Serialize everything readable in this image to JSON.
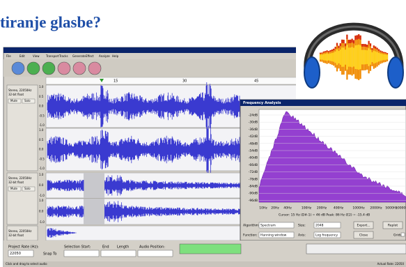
{
  "slide": {
    "title": "tiranje glasbe?"
  },
  "menu": [
    "File",
    "Edit",
    "View",
    "Transport",
    "Tracks",
    "Generate",
    "Effect",
    "Analyze",
    "Help"
  ],
  "ruler": [
    "15",
    "30",
    "45"
  ],
  "track_info": [
    "Stereo, 22050Hz",
    "32-bit float"
  ],
  "track_buttons": [
    "Mute",
    "Solo"
  ],
  "amplitude_labels": [
    "1.0",
    "0.5",
    "0.0",
    "-0.5",
    "-1.0"
  ],
  "frequency_analysis": {
    "title": "Frequency Analysis",
    "db_labels": [
      "-24dB",
      "-30dB",
      "-36dB",
      "-42dB",
      "-48dB",
      "-54dB",
      "-60dB",
      "-66dB",
      "-72dB",
      "-78dB",
      "-84dB",
      "-90dB",
      "-96dB"
    ],
    "hz_labels": [
      "10Hz",
      "20Hz",
      "40Hz",
      "100Hz",
      "200Hz",
      "400Hz",
      "1000Hz",
      "2000Hz",
      "5000Hz",
      "10000Hz"
    ],
    "cursor": "Cursor: 15 Hz (D#-1) = 46 dB    Peak: 86 Hz (E2) = -15.4 dB",
    "algorithm_label": "Algorithm:",
    "algorithm": "Spectrum",
    "size_label": "Size:",
    "size": "2048",
    "export": "Export...",
    "replot": "Replot",
    "function_label": "Function:",
    "function": "Hanning window",
    "axis_label": "Axis:",
    "axis": "Log frequency",
    "close": "Close",
    "grids": "Grids"
  },
  "status": {
    "project_rate_label": "Project Rate (Hz):",
    "project_rate": "22050",
    "snap": "Snap To",
    "selection_start": "Selection Start:",
    "end": "End",
    "length": "Length",
    "audio_position": "Audio Position:",
    "hint": "Click and drag to select audio",
    "actual_rate": "Actual Rate: 22050"
  }
}
